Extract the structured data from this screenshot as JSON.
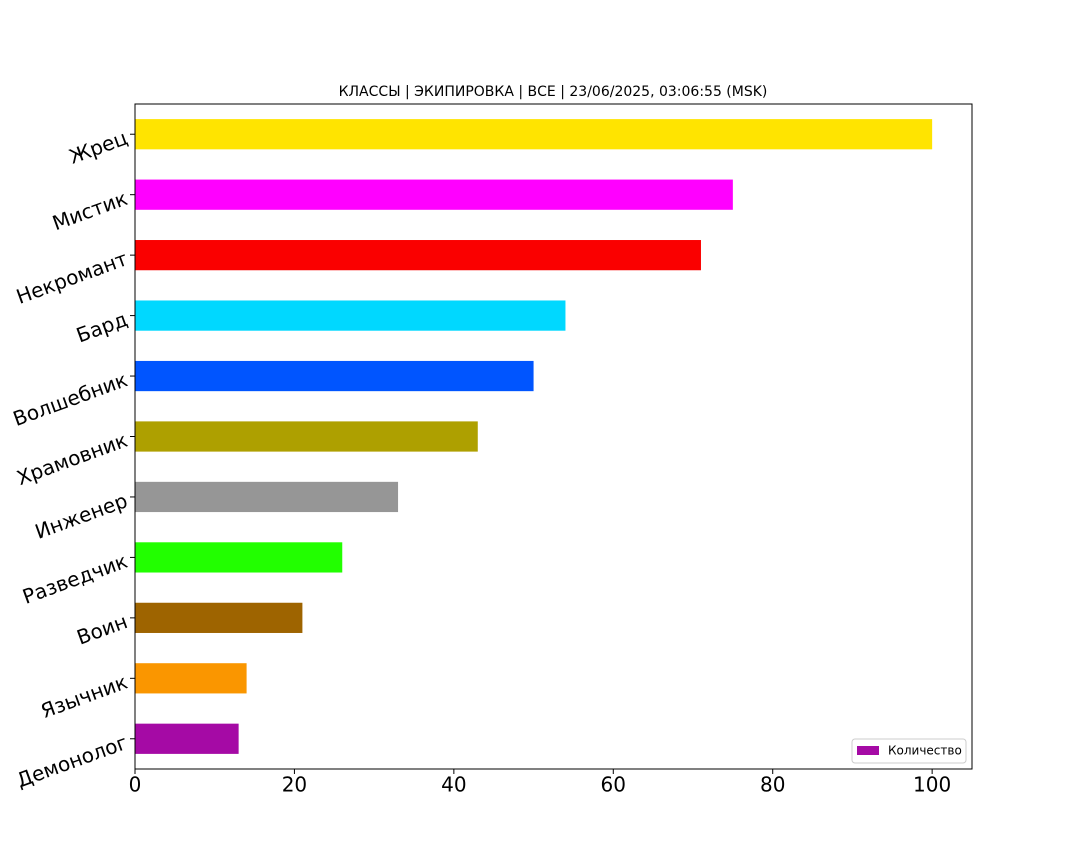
{
  "chart_data": {
    "type": "barh",
    "title": "КЛАССЫ | ЭКИПИРОВКА | ВСЕ | 23/06/2025, 03:06:55 (MSK)",
    "categories": [
      "Жрец",
      "Мистик",
      "Некромант",
      "Бард",
      "Волшебник",
      "Храмовник",
      "Инженер",
      "Разведчик",
      "Воин",
      "Язычник",
      "Демонолог"
    ],
    "series": [
      {
        "name": "Количество",
        "color": "#a50aa5",
        "colors": [
          "#ffe400",
          "#ff00ff",
          "#fa0000",
          "#00d8ff",
          "#0055ff",
          "#aea000",
          "#969696",
          "#22ff00",
          "#9e6400",
          "#fa9600",
          "#a50aa5"
        ],
        "values": [
          100,
          75,
          71,
          54,
          50,
          43,
          33,
          26,
          21,
          14,
          13
        ]
      }
    ],
    "xlim": [
      0,
      105
    ],
    "xticks": [
      0,
      20,
      40,
      60,
      80,
      100
    ],
    "legend": "lower right"
  }
}
